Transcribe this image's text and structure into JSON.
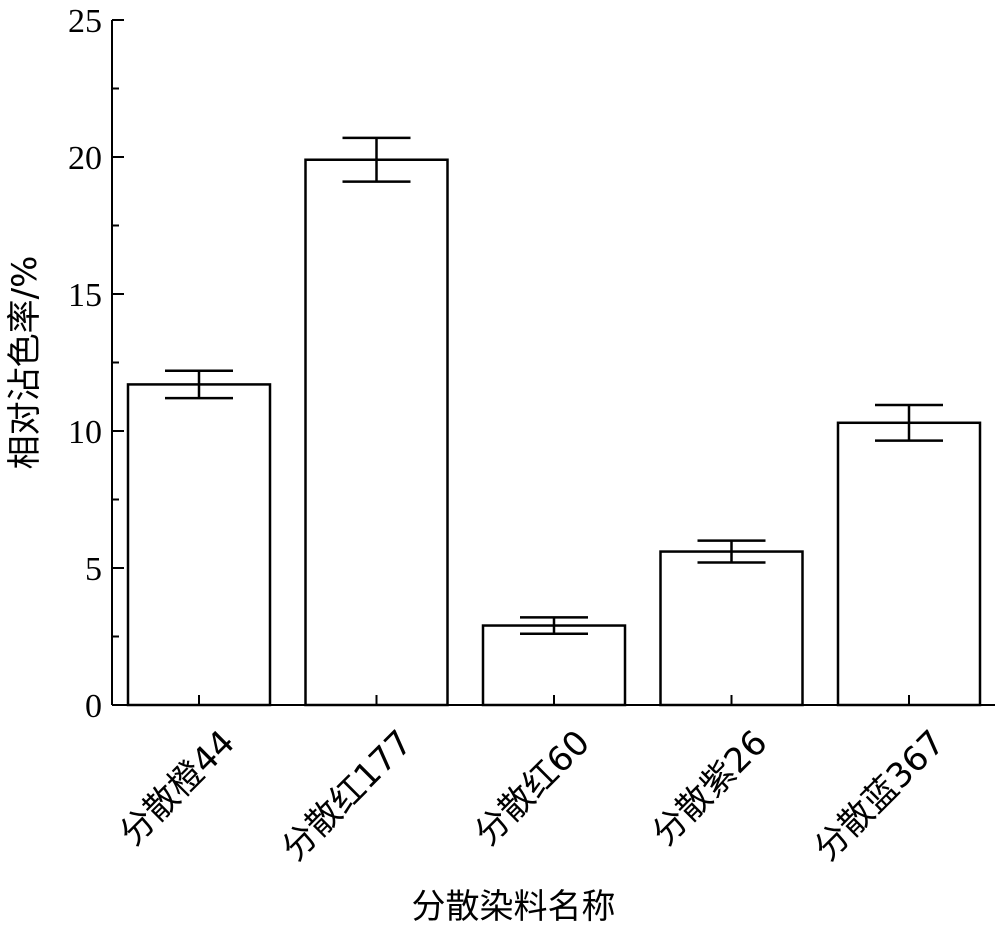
{
  "chart_data": {
    "type": "bar",
    "categories": [
      "分散橙44",
      "分散红177",
      "分散红60",
      "分散紫26",
      "分散蓝367"
    ],
    "values": [
      11.7,
      19.9,
      2.9,
      5.6,
      10.3
    ],
    "errors": [
      0.5,
      0.8,
      0.3,
      0.4,
      0.65
    ],
    "xlabel": "分散染料名称",
    "ylabel": "相对沾色率/%",
    "ylim": [
      0,
      25
    ],
    "yticks": [
      0,
      5,
      10,
      15,
      20,
      25
    ],
    "grid": false,
    "bar_fill": "#ffffff",
    "bar_stroke": "#000000"
  }
}
